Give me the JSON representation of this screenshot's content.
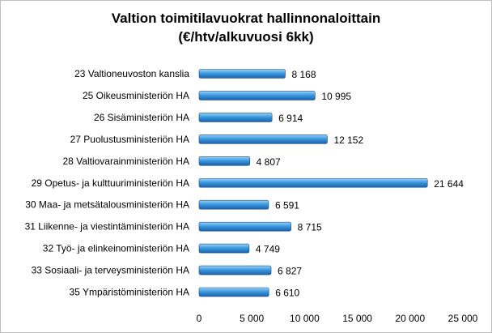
{
  "chart_data": {
    "type": "bar",
    "orientation": "horizontal",
    "title_line1": "Valtion toimitilavuokrat hallinnonaloittain",
    "title_line2": "(€/htv/alkuvuosi 6kk)",
    "categories": [
      "23 Valtioneuvoston kanslia",
      "25 Oikeusministeriön HA",
      "26 Sisäministeriön HA",
      "27 Puolustusministeriön HA",
      "28 Valtiovarainministeriön HA",
      "29 Opetus- ja kulttuuriministeriön HA",
      "30 Maa- ja metsätalousministeriön HA",
      "31 Liikenne- ja viestintäministeriön HA",
      "32 Työ- ja elinkeinoministeriön HA",
      "33 Sosiaali- ja terveysministeriön HA",
      "35 Ympäristöministeriön HA"
    ],
    "values": [
      8168,
      10995,
      6914,
      12152,
      4807,
      21644,
      6591,
      8715,
      4749,
      6827,
      6610
    ],
    "value_labels": [
      "8 168",
      "10 995",
      "6 914",
      "12 152",
      "4 807",
      "21 644",
      "6 591",
      "8 715",
      "4 749",
      "6 827",
      "6 610"
    ],
    "xlim": [
      0,
      25000
    ],
    "x_ticks": [
      0,
      5000,
      10000,
      15000,
      20000,
      25000
    ],
    "x_tick_labels": [
      "0",
      "5 000",
      "10 000",
      "15 000",
      "20 000",
      "25 000"
    ],
    "grid": false,
    "legend": "none",
    "colors": {
      "bar_light": "#9fd4f5",
      "bar_mid": "#3b9ae0",
      "bar_dark": "#1c5fa8",
      "bar_outline": "#1a4f8a"
    }
  }
}
